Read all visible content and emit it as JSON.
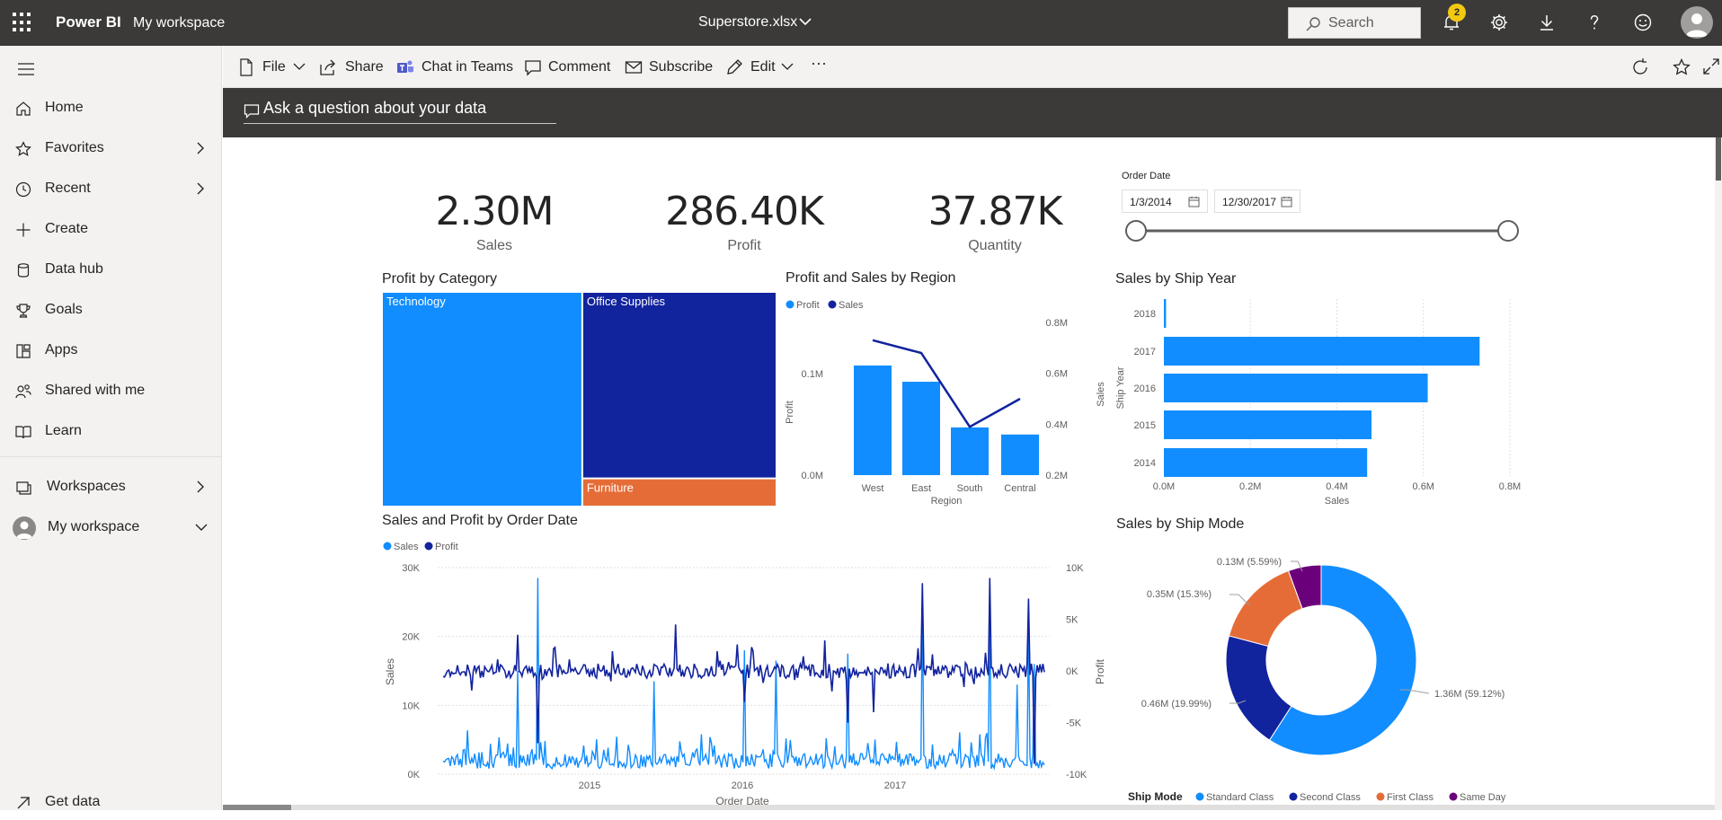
{
  "topbar": {
    "brand": "Power BI",
    "workspace": "My workspace",
    "doc_title": "Superstore.xlsx",
    "search_placeholder": "Search",
    "notifications_count": "2"
  },
  "sidebar": {
    "items": [
      {
        "label": "Home",
        "icon": "home-icon"
      },
      {
        "label": "Favorites",
        "icon": "star-icon"
      },
      {
        "label": "Recent",
        "icon": "clock-icon"
      },
      {
        "label": "Create",
        "icon": "plus-icon"
      },
      {
        "label": "Data hub",
        "icon": "cylinder-icon"
      },
      {
        "label": "Goals",
        "icon": "trophy-icon"
      },
      {
        "label": "Apps",
        "icon": "apps-icon"
      },
      {
        "label": "Shared with me",
        "icon": "people-icon"
      },
      {
        "label": "Learn",
        "icon": "book-icon"
      }
    ],
    "workspaces_label": "Workspaces",
    "my_workspace_label": "My workspace",
    "get_data_label": "Get data"
  },
  "toolbar": {
    "file": "File",
    "share": "Share",
    "chat_in_teams": "Chat in Teams",
    "comment": "Comment",
    "subscribe": "Subscribe",
    "edit": "Edit",
    "more": "···"
  },
  "qna": {
    "placeholder": "Ask a question about your data"
  },
  "cards": [
    {
      "value": "2.30M",
      "label": "Sales"
    },
    {
      "value": "286.40K",
      "label": "Profit"
    },
    {
      "value": "37.87K",
      "label": "Quantity"
    }
  ],
  "slicer": {
    "title": "Order Date",
    "start": "1/3/2014",
    "end": "12/30/2017"
  },
  "colors": {
    "light_blue": "#118dff",
    "dark_blue": "#12239e",
    "orange": "#e66c37",
    "purple": "#6b007b"
  },
  "chart_data": [
    {
      "type": "treemap",
      "title": "Profit by Category",
      "categories": [
        "Technology",
        "Office Supplies",
        "Furniture"
      ],
      "values": [
        145.4,
        122.5,
        18.5
      ]
    },
    {
      "type": "bar+line",
      "title": "Profit and Sales by Region",
      "legend": [
        "Profit",
        "Sales"
      ],
      "categories": [
        "West",
        "East",
        "South",
        "Central"
      ],
      "profit": [
        0.108,
        0.092,
        0.047,
        0.04
      ],
      "sales": [
        0.73,
        0.68,
        0.39,
        0.5
      ],
      "xlabel": "Region",
      "ylabel_left": "Profit",
      "ylabel_right": "Sales",
      "left_ticks": [
        "0.0M",
        "0.1M"
      ],
      "right_ticks": [
        "0.2M",
        "0.4M",
        "0.6M",
        "0.8M"
      ]
    },
    {
      "type": "bar",
      "orientation": "horizontal",
      "title": "Sales by Ship Year",
      "categories": [
        "2018",
        "2017",
        "2016",
        "2015",
        "2014"
      ],
      "values": [
        0.005,
        0.73,
        0.61,
        0.48,
        0.47
      ],
      "xlabel": "Sales",
      "ylabel": "Ship Year",
      "x_ticks": [
        "0.0M",
        "0.2M",
        "0.4M",
        "0.6M",
        "0.8M"
      ],
      "xlim": [
        0,
        0.8
      ]
    },
    {
      "type": "line",
      "title": "Sales and Profit by Order Date",
      "legend": [
        "Sales",
        "Profit"
      ],
      "xlabel": "Order Date",
      "ylabel_left": "Sales",
      "ylabel_right": "Profit",
      "x_ticks": [
        "2015",
        "2016",
        "2017"
      ],
      "left_ticks": [
        "0K",
        "10K",
        "20K",
        "30K"
      ],
      "right_ticks": [
        "-10K",
        "-5K",
        "0K",
        "5K",
        "10K"
      ],
      "ylim_left": [
        0,
        30
      ],
      "ylim_right": [
        -10,
        10
      ]
    },
    {
      "type": "pie",
      "title": "Sales by Ship Mode",
      "legend_title": "Ship Mode",
      "categories": [
        "Standard Class",
        "Second Class",
        "First Class",
        "Same Day"
      ],
      "values": [
        59.12,
        19.99,
        15.3,
        5.59
      ],
      "labels": [
        "1.36M (59.12%)",
        "0.46M (19.99%)",
        "0.35M (15.3%)",
        "0.13M (5.59%)"
      ]
    }
  ]
}
